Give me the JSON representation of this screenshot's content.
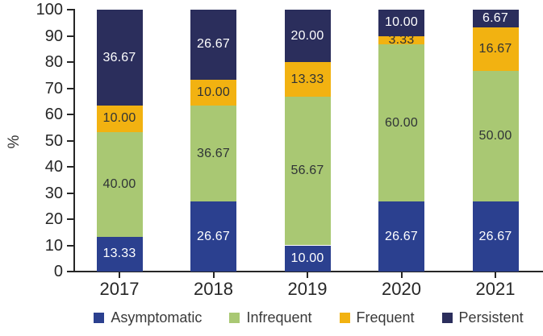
{
  "chart_data": {
    "type": "bar",
    "stacked": true,
    "title": "",
    "xlabel": "",
    "ylabel": "%",
    "ylim": [
      0,
      100
    ],
    "yticks": [
      0,
      10,
      20,
      30,
      40,
      50,
      60,
      70,
      80,
      90,
      100
    ],
    "categories": [
      "2017",
      "2018",
      "2019",
      "2020",
      "2021"
    ],
    "series": [
      {
        "name": "Asymptomatic",
        "color": "#2b408f",
        "label_color": "#ffffff",
        "values": [
          13.33,
          26.67,
          10.0,
          26.67,
          26.67
        ]
      },
      {
        "name": "Infrequent",
        "color": "#a9c873",
        "label_color": "#2f3336",
        "values": [
          40.0,
          36.67,
          56.67,
          60.0,
          50.0
        ]
      },
      {
        "name": "Frequent",
        "color": "#f2b211",
        "label_color": "#2f3336",
        "values": [
          10.0,
          10.0,
          13.33,
          3.33,
          16.67
        ]
      },
      {
        "name": "Persistent",
        "color": "#2b2e5c",
        "label_color": "#ffffff",
        "values": [
          36.67,
          26.67,
          20.0,
          10.0,
          6.67
        ]
      }
    ],
    "value_label_decimals": 2,
    "legend_position": "bottom",
    "grid": false,
    "axis_color": "#262626"
  }
}
